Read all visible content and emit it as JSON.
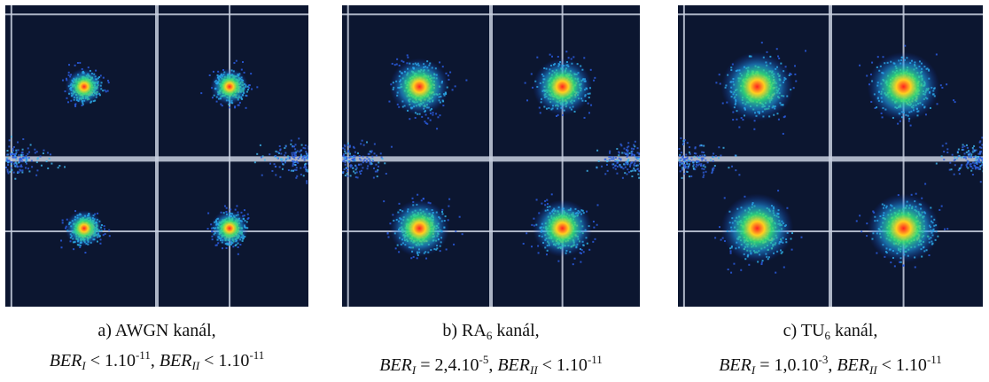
{
  "figure": {
    "panels": [
      {
        "caption": [
          [
            {
              "text": "a) AWGN kanál,"
            }
          ],
          [
            {
              "text": "BER",
              "style": "i"
            },
            {
              "text": "I",
              "style": "sub-i"
            },
            {
              "text": " < 1.10"
            },
            {
              "text": "-11",
              "style": "sup"
            },
            {
              "text": ", "
            },
            {
              "text": "BER",
              "style": "i"
            },
            {
              "text": "II",
              "style": "sub-i"
            },
            {
              "text": " < 1.10"
            },
            {
              "text": "-11",
              "style": "sup"
            }
          ]
        ]
      },
      {
        "caption": [
          [
            {
              "text": "b) RA"
            },
            {
              "text": "6",
              "style": "sub"
            },
            {
              "text": " kanál,"
            }
          ],
          [
            {
              "text": "BER",
              "style": "i"
            },
            {
              "text": "I",
              "style": "sub-i"
            },
            {
              "text": " = 2,4.10"
            },
            {
              "text": "-5",
              "style": "sup"
            },
            {
              "text": ", "
            },
            {
              "text": "BER",
              "style": "i"
            },
            {
              "text": "II",
              "style": "sub-i"
            },
            {
              "text": " < 1.10"
            },
            {
              "text": "-11",
              "style": "sup"
            }
          ]
        ]
      },
      {
        "caption": [
          [
            {
              "text": "c) TU"
            },
            {
              "text": "6",
              "style": "sub"
            },
            {
              "text": " kanál,"
            }
          ],
          [
            {
              "text": "BER",
              "style": "i"
            },
            {
              "text": "I",
              "style": "sub-i"
            },
            {
              "text": " = 1,0.10"
            },
            {
              "text": "-3",
              "style": "sup"
            },
            {
              "text": ", "
            },
            {
              "text": "BER",
              "style": "i"
            },
            {
              "text": "II",
              "style": "sub-i"
            },
            {
              "text": " < 1.10"
            },
            {
              "text": "-11",
              "style": "sup"
            }
          ]
        ]
      }
    ]
  }
}
